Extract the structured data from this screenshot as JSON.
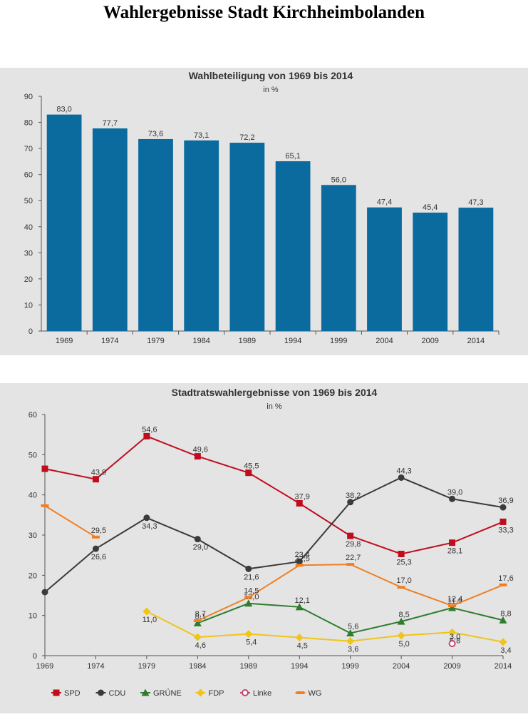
{
  "page_title": "Wahlergebnisse Stadt Kirchheimbolanden",
  "chart_data": [
    {
      "type": "bar",
      "title": "Wahlbeteiligung von 1969 bis 2014",
      "subtitle": "in %",
      "categories": [
        "1969",
        "1974",
        "1979",
        "1984",
        "1989",
        "1994",
        "1999",
        "2004",
        "2009",
        "2014"
      ],
      "values": [
        83.0,
        77.7,
        73.6,
        73.1,
        72.2,
        65.1,
        56.0,
        47.4,
        45.4,
        47.3
      ],
      "value_labels": [
        "83,0",
        "77,7",
        "73,6",
        "73,1",
        "72,2",
        "65,1",
        "56,0",
        "47,4",
        "45,4",
        "47,3"
      ],
      "yticks": [
        "0",
        "10",
        "20",
        "30",
        "40",
        "50",
        "60",
        "70",
        "80",
        "90"
      ],
      "ylim": [
        0,
        90
      ],
      "grid": false,
      "bar_color": "#0b6a9e"
    },
    {
      "type": "line",
      "title": "Stadtratswahlergebnisse von 1969 bis 2014",
      "subtitle": "in %",
      "x": [
        "1969",
        "1974",
        "1979",
        "1984",
        "1989",
        "1994",
        "1999",
        "2004",
        "2009",
        "2014"
      ],
      "yticks": [
        "0",
        "10",
        "20",
        "30",
        "40",
        "50",
        "60"
      ],
      "ylim": [
        0,
        60
      ],
      "grid": false,
      "legend_position": "bottom-left",
      "series": [
        {
          "name": "SPD",
          "color": "#c00d1e",
          "marker": "square",
          "values": [
            46.5,
            43.9,
            54.6,
            49.6,
            45.5,
            37.9,
            29.8,
            25.3,
            28.1,
            33.3
          ],
          "labels": [
            "",
            "43,9",
            "54,6",
            "49,6",
            "45,5",
            "37,9",
            "29,8",
            "25,3",
            "28,1",
            "33,3"
          ]
        },
        {
          "name": "CDU",
          "color": "#3b3b3b",
          "marker": "circle",
          "values": [
            15.8,
            26.6,
            34.3,
            29.0,
            21.6,
            23.4,
            38.2,
            44.3,
            39.0,
            36.9
          ],
          "labels": [
            "",
            "26,6",
            "34,3",
            "29,0",
            "21,6",
            "23,4",
            "38,2",
            "44,3",
            "39,0",
            "36,9"
          ]
        },
        {
          "name": "GRÜNE",
          "color": "#2d7d2d",
          "marker": "triangle",
          "values": [
            null,
            null,
            null,
            8.1,
            13.0,
            12.1,
            5.6,
            8.5,
            11.9,
            8.8
          ],
          "labels": [
            "",
            "",
            "",
            "8,1",
            "13,0",
            "12,1",
            "5,6",
            "8,5",
            "11,9",
            "8,8"
          ]
        },
        {
          "name": "FDP",
          "color": "#f0c419",
          "marker": "diamond",
          "values": [
            null,
            null,
            11.0,
            4.6,
            5.4,
            4.5,
            3.6,
            5.0,
            5.8,
            3.4
          ],
          "labels": [
            "",
            "",
            "11,0",
            "4,6",
            "5,4",
            "4,5",
            "3,6",
            "5,0",
            "5,8",
            "3,4"
          ]
        },
        {
          "name": "Linke",
          "color": "#c8436e",
          "marker": "circle-open",
          "values": [
            null,
            null,
            null,
            null,
            null,
            null,
            null,
            null,
            3.0,
            null
          ],
          "labels": [
            "",
            "",
            "",
            "",
            "",
            "",
            "",
            "",
            "3,0",
            ""
          ]
        },
        {
          "name": "WG",
          "color": "#f07f23",
          "marker": "dash",
          "values": [
            37.3,
            29.5,
            null,
            8.7,
            14.5,
            22.5,
            22.7,
            17.0,
            12.4,
            17.6
          ],
          "labels": [
            "",
            "29,5",
            "",
            "8,7",
            "14,5",
            "22,5",
            "22,7",
            "17,0",
            "12,4",
            "17,6"
          ]
        }
      ]
    }
  ]
}
